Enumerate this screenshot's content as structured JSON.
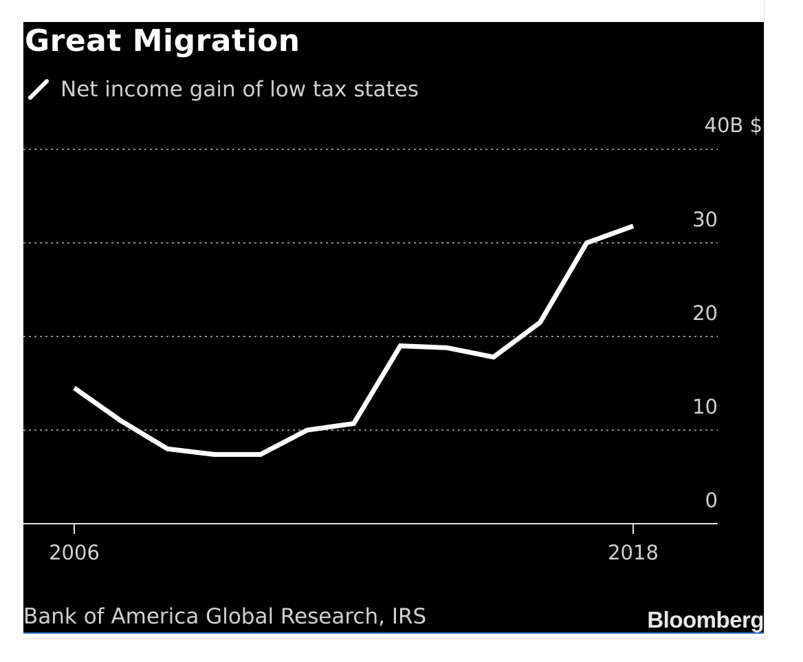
{
  "colors": {
    "background": "#000000",
    "line": "#ffffff",
    "grid": "#8a8a8a",
    "text": "#d0d0d0"
  },
  "chart_data": {
    "type": "line",
    "title": "Great Migration",
    "legend": [
      "Net income gain of low tax states"
    ],
    "unit_label": "40B $",
    "x": [
      2006,
      2007,
      2008,
      2009,
      2010,
      2011,
      2012,
      2013,
      2014,
      2015,
      2016,
      2017,
      2018
    ],
    "series": [
      {
        "name": "Net income gain of low tax states",
        "values": [
          14.5,
          11,
          8,
          7.4,
          7.4,
          10,
          10.7,
          19,
          18.8,
          17.8,
          21.5,
          30,
          31.8
        ]
      }
    ],
    "ylim": [
      0,
      40
    ],
    "yticks": [
      0,
      10,
      20,
      30,
      40
    ],
    "ytick_labels": [
      "0",
      "10",
      "20",
      "30",
      "40B $"
    ],
    "xtick_labels": [
      "2006",
      "2018"
    ],
    "grid": true,
    "legend_placement": "top-left",
    "source": "Bank of America Global Research, IRS",
    "brand": "Bloomberg"
  }
}
